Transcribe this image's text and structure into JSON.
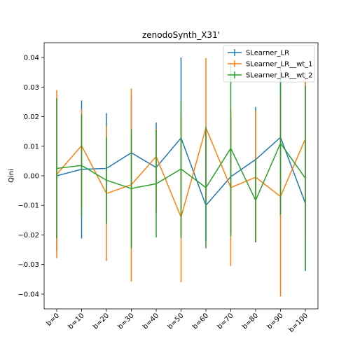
{
  "chart_data": {
    "type": "line",
    "title": "zenodoSynth_X31'",
    "xlabel": "",
    "ylabel": "Qini",
    "categories": [
      "b=0",
      "b=10",
      "b=20",
      "b=30",
      "b=40",
      "b=50",
      "b=60",
      "b=70",
      "b=80",
      "b=90",
      "b=100"
    ],
    "ylim": [
      -0.045,
      0.045
    ],
    "yticks": [
      -0.04,
      -0.03,
      -0.02,
      -0.01,
      0.0,
      0.01,
      0.02,
      0.03,
      0.04
    ],
    "ytick_labels": [
      "−0.04",
      "−0.03",
      "−0.02",
      "−0.01",
      "0.00",
      "0.01",
      "0.02",
      "0.03",
      "0.04"
    ],
    "grid": false,
    "legend_position": "top-right",
    "series": [
      {
        "name": "SLearner_LR",
        "color": "#1f77b4",
        "values": [
          0.0,
          0.0022,
          0.0025,
          0.0078,
          0.0028,
          0.0128,
          -0.01,
          -0.0003,
          0.0055,
          0.013,
          -0.0093
        ],
        "err_low": [
          -0.0255,
          -0.0212,
          -0.0162,
          -0.0242,
          -0.0125,
          -0.021,
          -0.0222,
          -0.019,
          -0.0225,
          -0.014,
          -0.032
        ],
        "err_high": [
          0.0262,
          0.0255,
          0.0212,
          0.027,
          0.018,
          0.04,
          0.0158,
          0.02,
          0.0233,
          0.037,
          0.033
        ]
      },
      {
        "name": "SLearner_LR__wt_1",
        "color": "#ff7f0e",
        "values": [
          0.0005,
          0.0102,
          -0.006,
          -0.003,
          0.0065,
          -0.014,
          0.0162,
          -0.004,
          -0.0005,
          -0.007,
          0.0125
        ],
        "err_low": [
          -0.0278,
          -0.0115,
          -0.0288,
          -0.0358,
          -0.012,
          -0.036,
          -0.01,
          -0.0305,
          -0.0225,
          -0.0408,
          -0.021
        ],
        "err_high": [
          0.029,
          0.0225,
          0.017,
          0.0295,
          0.016,
          0.021,
          0.0398,
          0.0225,
          0.022,
          0.027,
          0.035
        ]
      },
      {
        "name": "SLearner_LR__wt_2",
        "color": "#2ca02c",
        "values": [
          0.0025,
          0.0035,
          -0.0015,
          -0.0043,
          -0.0027,
          0.0023,
          -0.004,
          0.0093,
          -0.0083,
          0.011,
          -0.0008
        ],
        "err_low": [
          -0.021,
          -0.0138,
          -0.0162,
          -0.0245,
          -0.0208,
          -0.021,
          -0.0245,
          -0.0205,
          -0.0225,
          -0.013,
          -0.0322
        ],
        "err_high": [
          0.0262,
          0.0208,
          0.013,
          0.0158,
          0.0155,
          0.0255,
          0.0165,
          0.038,
          0.0058,
          0.035,
          0.0305
        ]
      }
    ]
  }
}
